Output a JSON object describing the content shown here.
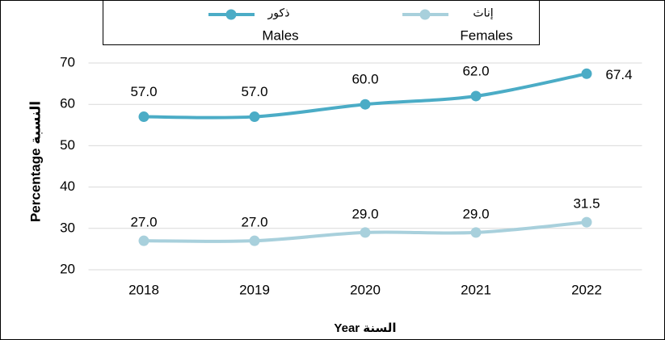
{
  "chart_data": {
    "type": "line",
    "x_label": "Year السنة",
    "y_label": "Percentage النسبة",
    "categories": [
      "2018",
      "2019",
      "2020",
      "2021",
      "2022"
    ],
    "series": [
      {
        "name": "Males",
        "name_ar": "ذكور",
        "color": "#4bacc6",
        "values": [
          57,
          57,
          60,
          62,
          67.4
        ],
        "value_labels": [
          "57.0",
          "57.0",
          "60.0",
          "62.0",
          "67.4"
        ]
      },
      {
        "name": "Females",
        "name_ar": "إناث",
        "color": "#a8d0dc",
        "values": [
          27,
          27,
          29,
          29,
          31.5
        ],
        "value_labels": [
          "27.0",
          "27.0",
          "29.0",
          "29.0",
          "31.5"
        ]
      }
    ],
    "ylim": [
      20,
      70
    ],
    "yticks": [
      20,
      30,
      40,
      50,
      60,
      70
    ],
    "grid": true
  }
}
